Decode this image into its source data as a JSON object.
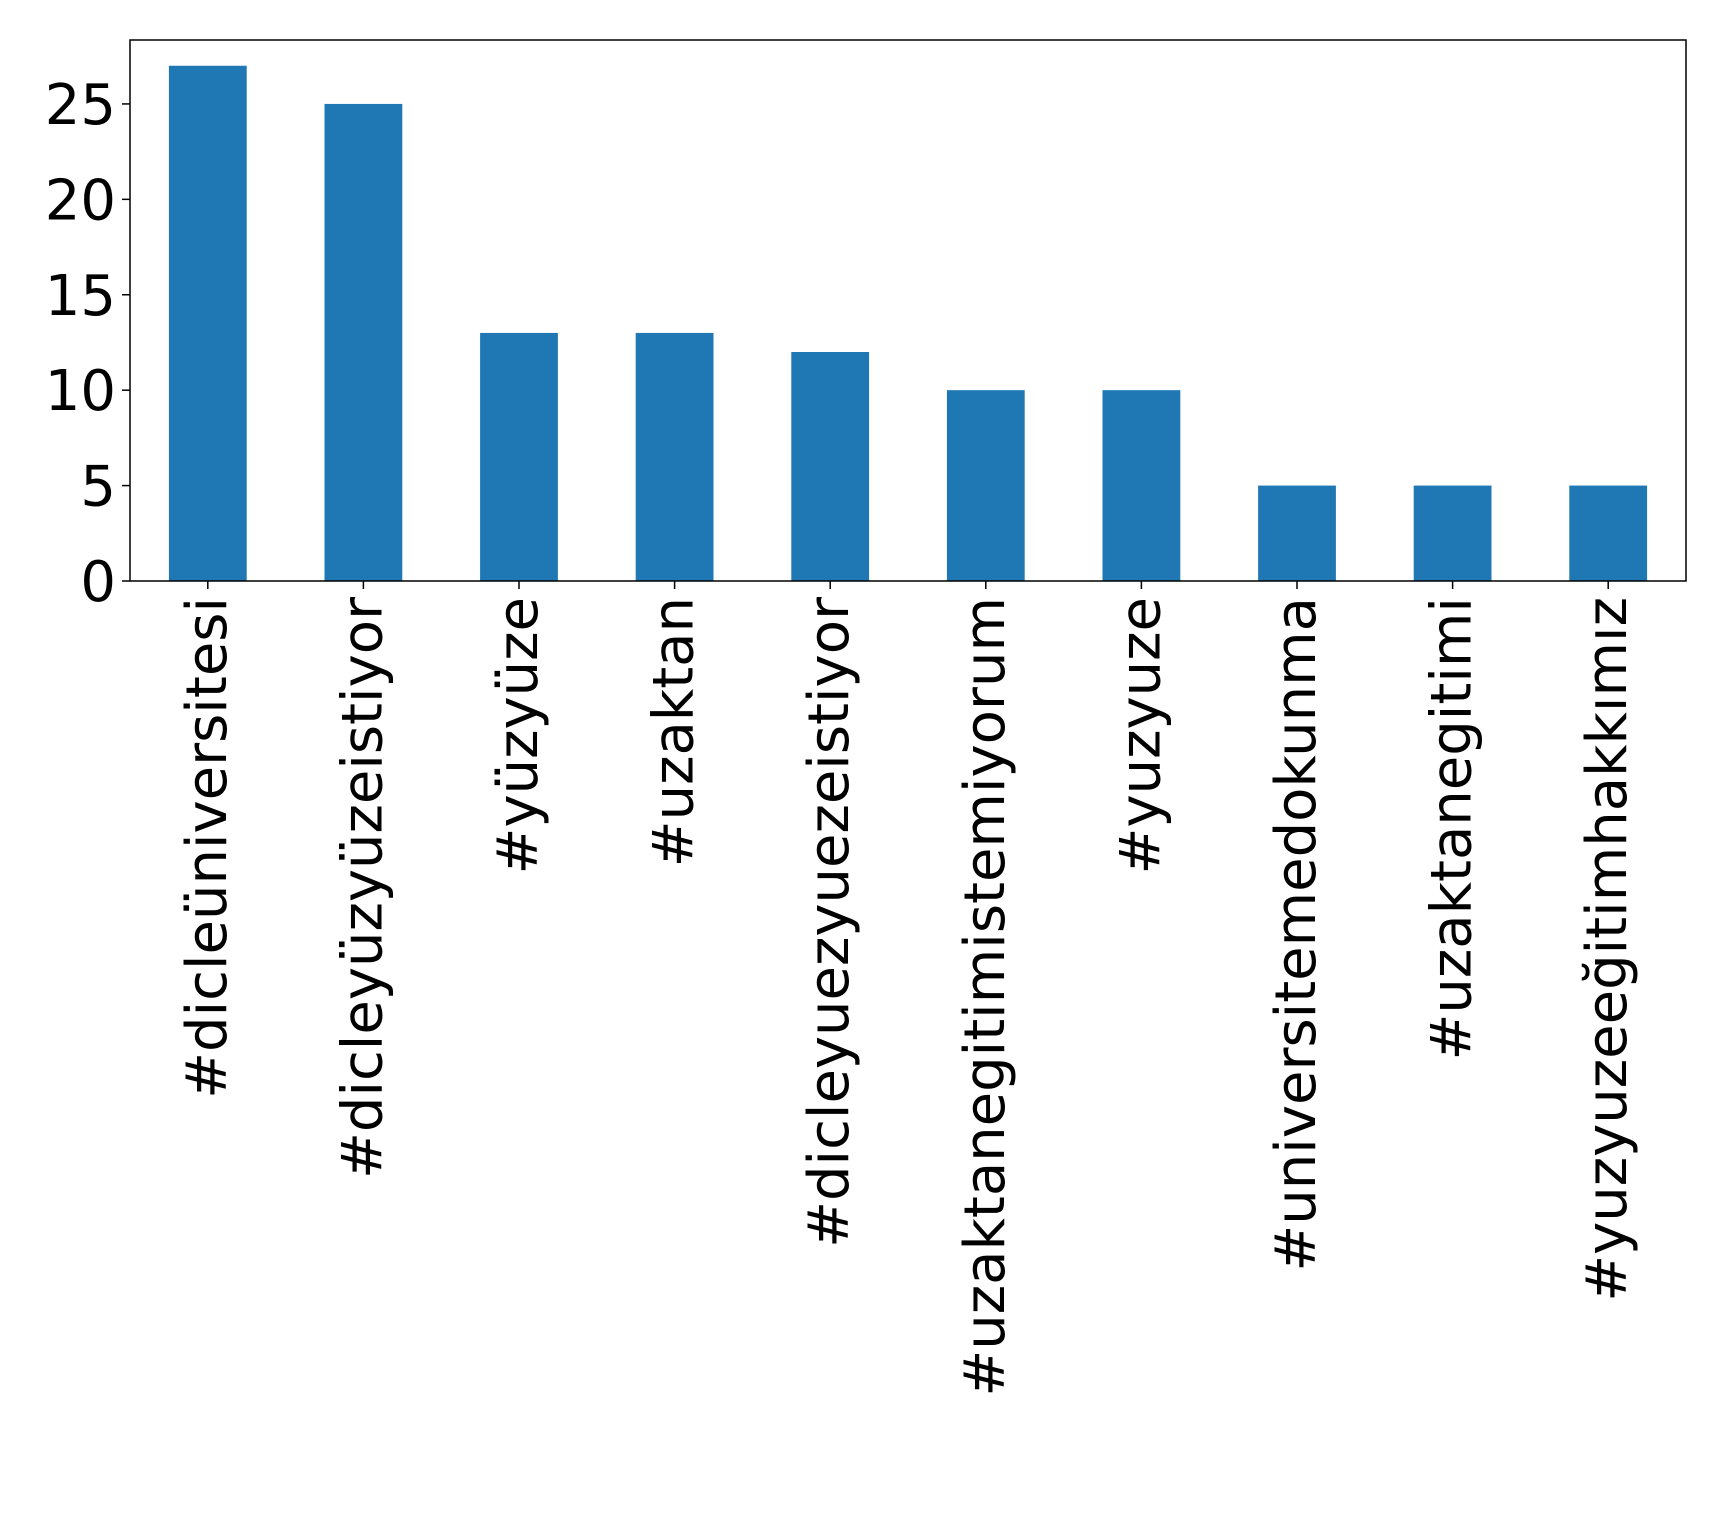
{
  "chart_data": {
    "type": "bar",
    "categories": [
      "#dicleüniversitesi",
      "#dicleyüzyüzeistiyor",
      "#yüzyüze",
      "#uzaktan",
      "#dicleyuezyuezeistiyor",
      "#uzaktanegitimistemiyorum",
      "#yuzyuze",
      "#universitemedokunma",
      "#uzaktanegitimi",
      "#yuzyuzeeğitimhakkımız"
    ],
    "values": [
      27,
      25,
      13,
      13,
      12,
      10,
      10,
      5,
      5,
      5
    ],
    "yticks": [
      "0",
      "5",
      "10",
      "15",
      "20",
      "25"
    ],
    "ylim": [
      0,
      28.35
    ],
    "grid": false,
    "legend": "none",
    "colors": {
      "bar": "#1f77b4",
      "axis": "#000000"
    }
  }
}
